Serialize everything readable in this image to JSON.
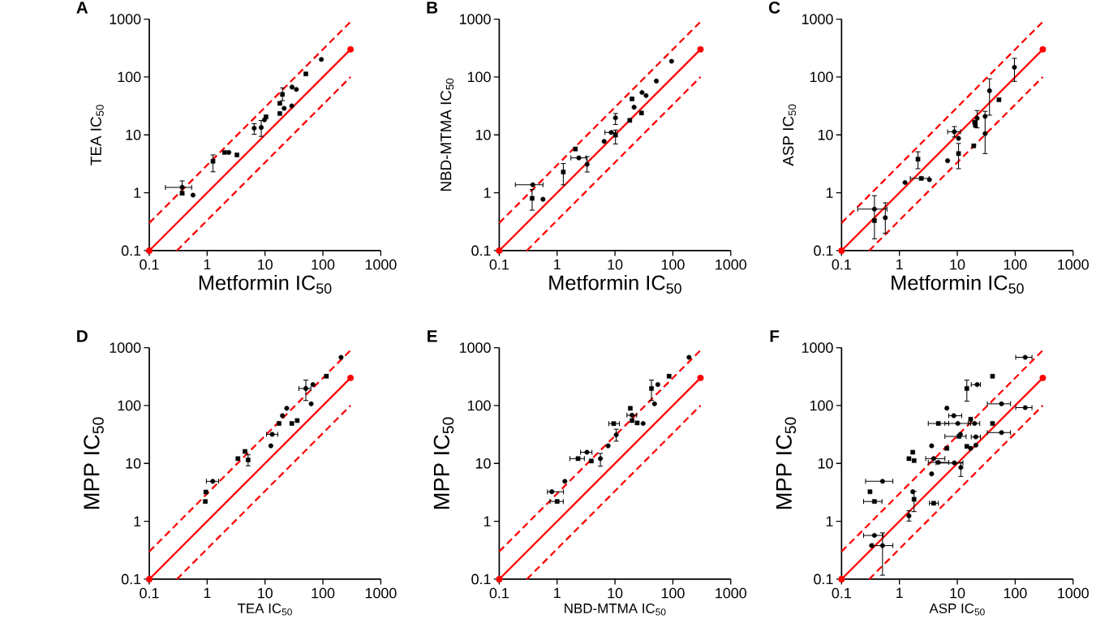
{
  "chart_data": [
    {
      "type": "scatter",
      "title": "A",
      "xlabel": "Metformin IC$_{50}$",
      "ylabel": "TEA IC$_{50}$",
      "log": "xy",
      "xlim": [
        0.1,
        1000
      ],
      "ylim": [
        0.1,
        1000
      ],
      "xticks": [
        0.1,
        1,
        10,
        100,
        1000
      ],
      "yticks": [
        0.1,
        1,
        10,
        100,
        1000
      ],
      "series": [
        {
          "type": "line",
          "color": "#ff0000",
          "marker": "circle",
          "line_style": "solid",
          "x": [
            0.1,
            300
          ],
          "values": [
            0.1,
            300
          ]
        },
        {
          "type": "line",
          "color": "#ff0000",
          "marker": "none",
          "line_style": "dashed",
          "x": [
            0.1,
            300
          ],
          "values": [
            0.3,
            900
          ]
        },
        {
          "type": "line",
          "color": "#ff0000",
          "marker": "none",
          "line_style": "dashed",
          "x": [
            0.3,
            300
          ],
          "values": [
            0.1,
            100
          ]
        },
        {
          "type": "scatter",
          "color": "#000000",
          "marker": "circle",
          "x": [
            0.37,
            0.57,
            2.37,
            6.5,
            8.6,
            9.8,
            21.4,
            29,
            29.3,
            34.8,
            94
          ],
          "values": [
            1.24,
            0.91,
            4.97,
            13,
            13.4,
            18.2,
            28.7,
            31.6,
            66.7,
            61,
            201
          ],
          "xerrors": [
            [
              0.19,
              0.54
            ],
            null,
            null,
            null,
            null,
            null,
            null,
            null,
            null,
            null,
            null
          ],
          "errors": [
            [
              0.94,
              1.6
            ],
            null,
            null,
            [
              10.2,
              15.6
            ],
            [
              9.4,
              17.7
            ],
            null,
            null,
            null,
            null,
            null,
            null
          ]
        },
        {
          "type": "scatter",
          "color": "#000000",
          "marker": "square",
          "x": [
            0.37,
            1.26,
            2.0,
            3.27,
            10.4,
            18,
            18,
            20,
            50.7
          ],
          "values": [
            0.98,
            3.5,
            4.97,
            4.5,
            20.5,
            23.4,
            35,
            50,
            113
          ],
          "errors": [
            null,
            [
              2.3,
              4.5
            ],
            null,
            null,
            null,
            null,
            null,
            [
              39,
              65
            ],
            null
          ]
        }
      ]
    },
    {
      "type": "scatter",
      "title": "B",
      "xlabel": "Metformin IC$_{50}$",
      "ylabel": "NBD-MTMA IC$_{50}$",
      "log": "xy",
      "xlim": [
        0.1,
        1000
      ],
      "ylim": [
        0.1,
        1000
      ],
      "xticks": [
        0.1,
        1,
        10,
        100,
        1000
      ],
      "yticks": [
        0.1,
        1,
        10,
        100,
        1000
      ],
      "series": [
        {
          "type": "line",
          "color": "#ff0000",
          "marker": "circle",
          "line_style": "solid",
          "x": [
            0.1,
            300
          ],
          "values": [
            0.1,
            300
          ]
        },
        {
          "type": "line",
          "color": "#ff0000",
          "marker": "none",
          "line_style": "dashed",
          "x": [
            0.1,
            300
          ],
          "values": [
            0.3,
            900
          ]
        },
        {
          "type": "line",
          "color": "#ff0000",
          "marker": "none",
          "line_style": "dashed",
          "x": [
            0.3,
            300
          ],
          "values": [
            0.1,
            100
          ]
        },
        {
          "type": "scatter",
          "color": "#000000",
          "marker": "circle",
          "x": [
            0.38,
            0.57,
            2.37,
            3.3,
            6.5,
            8.6,
            10.2,
            21.4,
            29.3,
            34.4,
            51.8,
            95
          ],
          "values": [
            1.37,
            0.77,
            4.0,
            3.1,
            7.7,
            11,
            19.7,
            30,
            54,
            47.7,
            85,
            187
          ],
          "xerrors": [
            [
              0.19,
              0.57
            ],
            null,
            [
              1.73,
              3.2
            ],
            null,
            null,
            [
              6.7,
              10.3
            ],
            null,
            null,
            null,
            null,
            null,
            null
          ],
          "errors": [
            null,
            null,
            null,
            [
              2.28,
              4.2
            ],
            null,
            null,
            [
              15.1,
              23.4
            ],
            null,
            null,
            null,
            null,
            null
          ]
        },
        {
          "type": "scatter",
          "color": "#000000",
          "marker": "square",
          "x": [
            0.37,
            1.28,
            2.07,
            10.2,
            18,
            19.7,
            28.7
          ],
          "values": [
            0.8,
            2.28,
            5.7,
            9.9,
            17.8,
            41.8,
            23.9
          ],
          "errors": [
            [
              0.5,
              1.14
            ],
            [
              1.37,
              3.2
            ],
            null,
            [
              6.95,
              12.1
            ],
            null,
            null,
            null
          ]
        }
      ]
    },
    {
      "type": "scatter",
      "title": "C",
      "xlabel": "Metformin IC$_{50}$",
      "ylabel": "ASP IC$_{50}$",
      "log": "xy",
      "xlim": [
        0.1,
        1000
      ],
      "ylim": [
        0.1,
        1000
      ],
      "xticks": [
        0.1,
        1,
        10,
        100,
        1000
      ],
      "yticks": [
        0.1,
        1,
        10,
        100,
        1000
      ],
      "series": [
        {
          "type": "line",
          "color": "#ff0000",
          "marker": "circle",
          "line_style": "solid",
          "x": [
            0.1,
            300
          ],
          "values": [
            0.1,
            300
          ]
        },
        {
          "type": "line",
          "color": "#ff0000",
          "marker": "none",
          "line_style": "dashed",
          "x": [
            0.1,
            300
          ],
          "values": [
            0.3,
            900
          ]
        },
        {
          "type": "line",
          "color": "#ff0000",
          "marker": "none",
          "line_style": "dashed",
          "x": [
            0.3,
            300
          ],
          "values": [
            0.1,
            100
          ]
        },
        {
          "type": "scatter",
          "color": "#000000",
          "marker": "circle",
          "x": [
            0.37,
            0.57,
            1.25,
            3.3,
            6.8,
            8.9,
            10.5,
            22,
            30.2,
            30.2,
            36,
            97
          ],
          "values": [
            0.52,
            0.37,
            1.5,
            1.68,
            3.57,
            11.3,
            8.7,
            19.4,
            20.8,
            10.5,
            57.7,
            147
          ],
          "xerrors": [
            [
              0.19,
              0.61
            ],
            null,
            null,
            null,
            null,
            [
              6.8,
              11.3
            ],
            null,
            null,
            null,
            null,
            null,
            null
          ],
          "errors": [
            [
              0.16,
              0.89
            ],
            [
              0.2,
              0.67
            ],
            null,
            null,
            null,
            [
              9.2,
              13.9
            ],
            null,
            [
              13.2,
              26.3
            ],
            null,
            [
              4.75,
              25.5
            ],
            [
              21.9,
              93
            ],
            [
              84,
              210
            ]
          ]
        },
        {
          "type": "scatter",
          "color": "#000000",
          "marker": "square",
          "x": [
            0.37,
            2.09,
            2.39,
            10.5,
            19.2,
            19.9,
            20.5,
            52.5
          ],
          "values": [
            0.33,
            3.8,
            1.77,
            4.75,
            6.45,
            16.5,
            14.6,
            40.4
          ],
          "xerrors": [
            null,
            null,
            [
              1.54,
              3.25
            ],
            null,
            null,
            null,
            null,
            null
          ],
          "errors": [
            null,
            [
              2.6,
              5.1
            ],
            null,
            [
              2.6,
              7.1
            ],
            null,
            null,
            null,
            null
          ]
        }
      ]
    },
    {
      "type": "scatter",
      "title": "D",
      "xlabel": "TEA IC$_{50}$",
      "ylabel": "MPP IC$_{50}$",
      "log": "xy",
      "xlim": [
        0.1,
        1000
      ],
      "ylim": [
        0.1,
        1000
      ],
      "xticks": [
        0.1,
        1,
        10,
        100,
        1000
      ],
      "yticks": [
        0.1,
        1,
        10,
        100,
        1000
      ],
      "series": [
        {
          "type": "line",
          "color": "#ff0000",
          "marker": "circle",
          "line_style": "solid",
          "x": [
            0.1,
            300
          ],
          "values": [
            0.1,
            300
          ]
        },
        {
          "type": "line",
          "color": "#ff0000",
          "marker": "none",
          "line_style": "dashed",
          "x": [
            0.1,
            300
          ],
          "values": [
            0.3,
            900
          ]
        },
        {
          "type": "line",
          "color": "#ff0000",
          "marker": "none",
          "line_style": "dashed",
          "x": [
            0.3,
            300
          ],
          "values": [
            0.1,
            100
          ]
        },
        {
          "type": "scatter",
          "color": "#000000",
          "marker": "circle",
          "x": [
            1.25,
            12.6,
            13.3,
            20,
            23.7,
            50.7,
            62.7,
            67.3,
            206
          ],
          "values": [
            4.9,
            20.1,
            31.8,
            66.7,
            89.5,
            197,
            107,
            230,
            681
          ],
          "xerrors": [
            [
              0.97,
              1.58
            ],
            null,
            [
              10.6,
              16.6
            ],
            null,
            null,
            [
              38.5,
              62
            ],
            null,
            null,
            null
          ],
          "errors": [
            null,
            null,
            null,
            null,
            null,
            [
              122,
              275
            ],
            null,
            null,
            null
          ]
        },
        {
          "type": "scatter",
          "color": "#000000",
          "marker": "square",
          "x": [
            0.93,
            0.95,
            3.4,
            4.5,
            5.1,
            17.5,
            29,
            36,
            115
          ],
          "values": [
            2.2,
            3.2,
            12.1,
            16.1,
            11.5,
            49,
            49,
            55,
            321
          ],
          "errors": [
            null,
            null,
            null,
            null,
            [
              9.1,
              14.1
            ],
            null,
            null,
            null,
            null
          ]
        }
      ]
    },
    {
      "type": "scatter",
      "title": "E",
      "xlabel": "NBD-MTMA IC$_{50}$",
      "ylabel": "MPP IC$_{50}$",
      "log": "xy",
      "xlim": [
        0.1,
        1000
      ],
      "ylim": [
        0.1,
        1000
      ],
      "xticks": [
        0.1,
        1,
        10,
        100,
        1000
      ],
      "yticks": [
        0.1,
        1,
        10,
        100,
        1000
      ],
      "series": [
        {
          "type": "line",
          "color": "#ff0000",
          "marker": "circle",
          "line_style": "solid",
          "x": [
            0.1,
            300
          ],
          "values": [
            0.1,
            300
          ]
        },
        {
          "type": "line",
          "color": "#ff0000",
          "marker": "none",
          "line_style": "dashed",
          "x": [
            0.1,
            300
          ],
          "values": [
            0.3,
            900
          ]
        },
        {
          "type": "line",
          "color": "#ff0000",
          "marker": "none",
          "line_style": "dashed",
          "x": [
            0.3,
            300
          ],
          "values": [
            0.1,
            100
          ]
        },
        {
          "type": "scatter",
          "color": "#000000",
          "marker": "circle",
          "x": [
            0.81,
            1.36,
            3.27,
            5.6,
            7.6,
            10.5,
            19.7,
            30.6,
            48.2,
            55,
            190
          ],
          "values": [
            3.24,
            4.9,
            15.6,
            12.1,
            20.1,
            31.1,
            68,
            49,
            107,
            230,
            681
          ],
          "xerrors": [
            [
              0.68,
              1.29
            ],
            null,
            [
              2.54,
              4.0
            ],
            null,
            null,
            null,
            [
              16.1,
              23.7
            ],
            null,
            null,
            null,
            null
          ],
          "errors": [
            null,
            null,
            null,
            [
              8.95,
              14.9
            ],
            null,
            [
              24.2,
              39
            ],
            null,
            null,
            null,
            null,
            null
          ]
        },
        {
          "type": "scatter",
          "color": "#000000",
          "marker": "square",
          "x": [
            1.0,
            2.3,
            3.9,
            9.5,
            18.4,
            19.7,
            24.2,
            42.7,
            86
          ],
          "values": [
            2.2,
            12.1,
            11,
            48.7,
            89.5,
            55,
            50,
            197,
            321
          ],
          "xerrors": [
            [
              0.75,
              1.28
            ],
            [
              1.66,
              2.96
            ],
            null,
            [
              7.8,
              11.9
            ],
            null,
            null,
            null,
            null,
            null
          ],
          "errors": [
            null,
            null,
            null,
            null,
            null,
            null,
            null,
            [
              122,
              275
            ],
            null
          ]
        }
      ]
    },
    {
      "type": "scatter",
      "title": "F",
      "xlabel": "ASP IC$_{50}$",
      "ylabel": "MPP IC$_{50}$",
      "log": "xy",
      "xlim": [
        0.1,
        1000
      ],
      "ylim": [
        0.1,
        1000
      ],
      "xticks": [
        0.1,
        1,
        10,
        100,
        1000
      ],
      "yticks": [
        0.1,
        1,
        10,
        100,
        1000
      ],
      "series": [
        {
          "type": "line",
          "color": "#ff0000",
          "marker": "circle",
          "line_style": "solid",
          "x": [
            0.1,
            300
          ],
          "values": [
            0.1,
            300
          ]
        },
        {
          "type": "line",
          "color": "#ff0000",
          "marker": "none",
          "line_style": "dashed",
          "x": [
            0.1,
            300
          ],
          "values": [
            0.3,
            900
          ]
        },
        {
          "type": "line",
          "color": "#ff0000",
          "marker": "none",
          "line_style": "dashed",
          "x": [
            0.3,
            300
          ],
          "values": [
            0.1,
            100
          ]
        },
        {
          "type": "scatter",
          "color": "#000000",
          "marker": "circle",
          "x": [
            0.51,
            0.37,
            0.33,
            0.51,
            1.46,
            1.7,
            3.6,
            3.6,
            3.9,
            4.7,
            6.6,
            8.7,
            8.9,
            10.2,
            11.3,
            11.5,
            17,
            19.9,
            20.9,
            20.9,
            22,
            58,
            58,
            149,
            149
          ],
          "values": [
            4.9,
            0.57,
            0.38,
            0.38,
            1.24,
            3.24,
            20.1,
            6.6,
            12.1,
            10.4,
            90,
            66.7,
            10.2,
            49,
            31.8,
            8.5,
            18.2,
            49,
            28.7,
            20.7,
            230,
            107,
            34.1,
            681,
            92
          ],
          "xerrors": [
            [
              0.26,
              0.77
            ],
            [
              0.24,
              0.52
            ],
            null,
            [
              0.35,
              0.77
            ],
            null,
            null,
            null,
            null,
            [
              2.84,
              6.1
            ],
            [
              3.15,
              7.1
            ],
            null,
            [
              7.1,
              11.9
            ],
            [
              4.3,
              12.5
            ],
            [
              6.1,
              17
            ],
            null,
            null,
            null,
            [
              15.4,
              24.4
            ],
            [
              17.4,
              25.1
            ],
            null,
            [
              17.4,
              25.1
            ],
            [
              33,
              83
            ],
            [
              33,
              83
            ],
            [
              102,
              195
            ],
            [
              102,
              195
            ]
          ],
          "errors": [
            null,
            null,
            null,
            [
              0.117,
              0.63
            ],
            [
              1.01,
              1.52
            ],
            null,
            null,
            null,
            null,
            null,
            null,
            null,
            null,
            null,
            null,
            [
              5.96,
              10.4
            ],
            null,
            null,
            null,
            null,
            null,
            null,
            null,
            null,
            null
          ]
        },
        {
          "type": "scatter",
          "color": "#000000",
          "marker": "square",
          "x": [
            0.31,
            0.37,
            1.46,
            1.7,
            1.79,
            1.79,
            3.9,
            4.7,
            6.6,
            10.7,
            14.6,
            14.6,
            17,
            40.6,
            40.6
          ],
          "values": [
            3.24,
            2.2,
            12.1,
            15.6,
            11.2,
            2.4,
            2.05,
            49,
            18.2,
            29.3,
            197,
            19.7,
            58,
            321,
            49
          ],
          "xerrors": [
            null,
            [
              0.24,
              0.5
            ],
            null,
            null,
            null,
            null,
            [
              3.3,
              4.7
            ],
            [
              3.15,
              7.1
            ],
            null,
            [
              6.1,
              14.2
            ],
            null,
            null,
            null,
            null,
            null
          ],
          "errors": [
            null,
            null,
            null,
            null,
            null,
            [
              1.47,
              3.3
            ],
            null,
            null,
            null,
            null,
            [
              119,
              275
            ],
            null,
            null,
            null,
            null
          ]
        }
      ]
    }
  ]
}
